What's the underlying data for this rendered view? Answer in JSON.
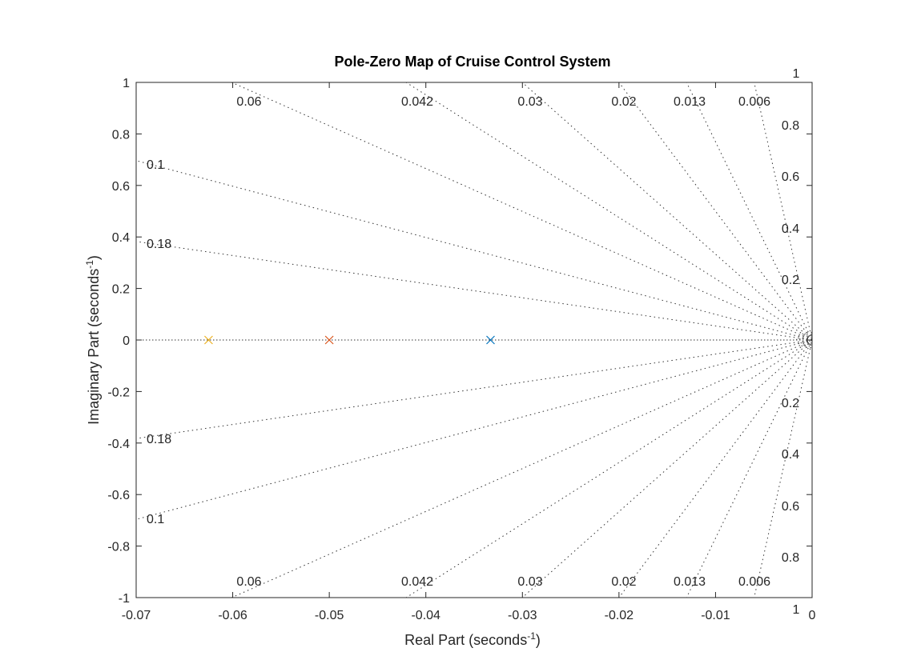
{
  "chart_data": {
    "type": "scatter",
    "title": "Pole-Zero Map of Cruise Control System",
    "xlabel": "Real Part (seconds",
    "ylabel": "Imaginary Part (seconds",
    "label_exponent": "-1",
    "xlim": [
      -0.07,
      0
    ],
    "ylim": [
      -1,
      1
    ],
    "xticks": [
      -0.07,
      -0.06,
      -0.05,
      -0.04,
      -0.03,
      -0.02,
      -0.01,
      0
    ],
    "xtick_labels": [
      "-0.07",
      "-0.06",
      "-0.05",
      "-0.04",
      "-0.03",
      "-0.02",
      "-0.01",
      "0"
    ],
    "yticks": [
      1,
      0.8,
      0.6,
      0.4,
      0.2,
      0,
      -0.2,
      -0.4,
      -0.6,
      -0.8,
      -1
    ],
    "ytick_labels": [
      "1",
      "0.8",
      "0.6",
      "0.4",
      "0.2",
      "0",
      "-0.2",
      "-0.4",
      "-0.6",
      "-0.8",
      "-1"
    ],
    "series": [
      {
        "marker": "x",
        "color": "#0072BD",
        "x": [
          -0.0333
        ],
        "y": [
          0
        ]
      },
      {
        "marker": "x",
        "color": "#D95319",
        "x": [
          -0.05
        ],
        "y": [
          0
        ]
      },
      {
        "marker": "x",
        "color": "#EDB120",
        "x": [
          -0.0625
        ],
        "y": [
          0
        ]
      }
    ],
    "grid": true,
    "damping_labels": [
      "0.06",
      "0.042",
      "0.03",
      "0.02",
      "0.013",
      "0.006",
      "0.1",
      "0.18"
    ],
    "damping_values": [
      0.06,
      0.042,
      0.03,
      0.02,
      0.013,
      0.006,
      0.1,
      0.18
    ],
    "frequency_labels": [
      "1",
      "0.8",
      "0.6",
      "0.4",
      "0.2",
      "0.2",
      "0.4",
      "0.6",
      "0.8",
      "1"
    ],
    "frequency_values": [
      0.2,
      0.4,
      0.6,
      0.8,
      1.0
    ]
  }
}
